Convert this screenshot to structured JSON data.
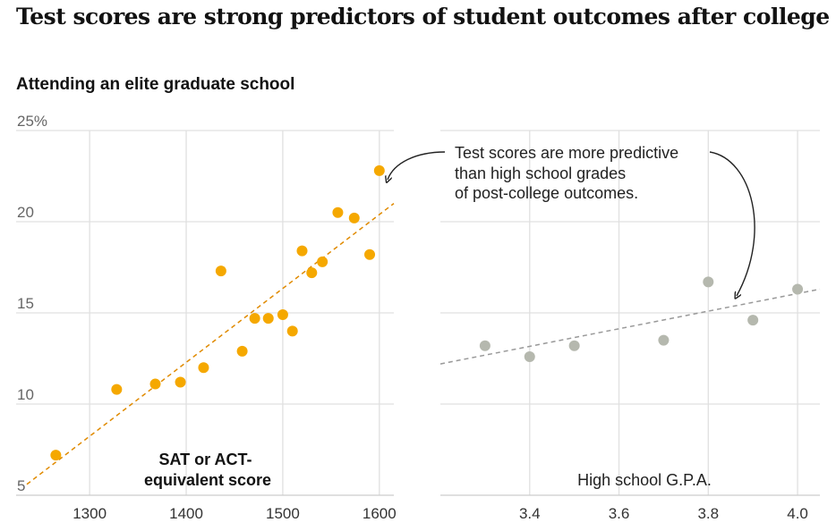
{
  "title": "Test scores are strong predictors of student outcomes after college",
  "subtitle": "Attending an elite graduate school",
  "annotation": [
    "Test scores are more predictive",
    "than high school grades",
    "of post-college outcomes."
  ],
  "colors": {
    "sat": "#f5a800",
    "sat_line": "#e08a00",
    "gpa": "#b5b8ae",
    "gpa_line": "#999999",
    "grid": "#e0e0e0"
  },
  "chart_data": [
    {
      "type": "scatter",
      "title": "Attending an elite graduate school",
      "xlabel": [
        "SAT or ACT-",
        "equivalent score"
      ],
      "ylabel": "",
      "xlim": [
        1235,
        1615
      ],
      "ylim": [
        5,
        25
      ],
      "yticks": [
        5,
        10,
        15,
        20,
        25
      ],
      "ytick_labels": [
        "5",
        "10",
        "15",
        "20",
        "25%"
      ],
      "xticks": [
        1300,
        1400,
        1500,
        1600
      ],
      "xtick_labels": [
        "1300",
        "1400",
        "1500",
        "1600"
      ],
      "x": [
        1265,
        1328,
        1368,
        1394,
        1418,
        1436,
        1458,
        1471,
        1485,
        1500,
        1510,
        1520,
        1530,
        1541,
        1557,
        1574,
        1590,
        1600
      ],
      "y": [
        7.2,
        10.8,
        11.1,
        11.2,
        12.0,
        17.3,
        12.9,
        14.7,
        14.7,
        14.9,
        14.0,
        18.4,
        17.2,
        17.8,
        20.5,
        20.2,
        18.2,
        22.8
      ],
      "trend": {
        "x": [
          1235,
          1615
        ],
        "y": [
          5.6,
          21.0
        ]
      }
    },
    {
      "type": "scatter",
      "xlabel": "High school G.P.A.",
      "xlim": [
        3.2,
        4.05
      ],
      "ylim": [
        5,
        25
      ],
      "xticks": [
        3.4,
        3.6,
        3.8,
        4.0
      ],
      "xtick_labels": [
        "3.4",
        "3.6",
        "3.8",
        "4.0"
      ],
      "x": [
        3.3,
        3.4,
        3.5,
        3.7,
        3.8,
        3.9,
        4.0
      ],
      "y": [
        13.2,
        12.6,
        13.2,
        13.5,
        16.7,
        14.6,
        16.3
      ],
      "trend": {
        "x": [
          3.2,
          4.05
        ],
        "y": [
          12.2,
          16.3
        ]
      }
    }
  ]
}
